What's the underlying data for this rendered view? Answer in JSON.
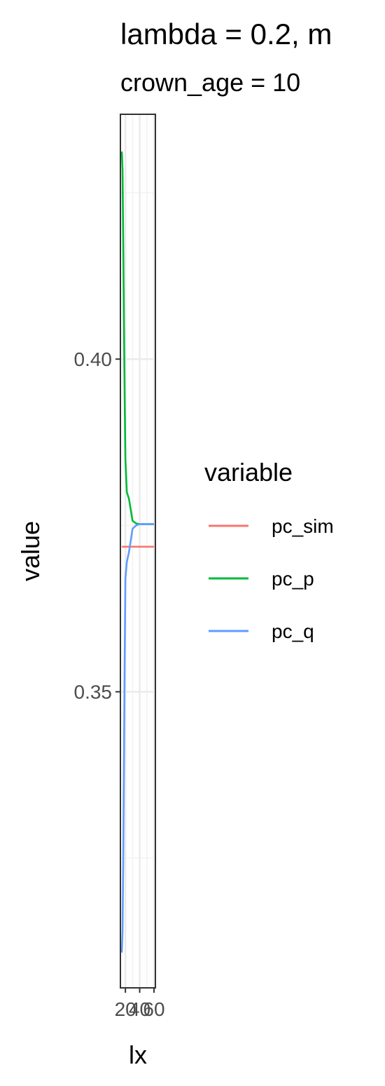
{
  "chart_data": {
    "type": "line",
    "title": "lambda = 0.2, m",
    "subtitle": "crown_age = 10",
    "xlabel": "lx",
    "ylabel": "value",
    "xlim": [
      13,
      62
    ],
    "ylim": [
      0.3055,
      0.4368
    ],
    "x_ticks": [
      20,
      40,
      60
    ],
    "x_tick_labels": [
      "20",
      "40",
      "60"
    ],
    "x_minor_ticks": [
      30,
      50
    ],
    "y_ticks": [
      0.35,
      0.4
    ],
    "y_tick_labels": [
      "0.35",
      "0.40"
    ],
    "y_minor_ticks": [
      0.325,
      0.375,
      0.425
    ],
    "grid": true,
    "legend": {
      "title": "variable",
      "position": "right"
    },
    "series": [
      {
        "name": "pc_sim",
        "color": "#F8766D",
        "x": [
          15,
          20,
          25,
          30,
          35,
          40,
          45,
          50,
          55,
          60
        ],
        "values": [
          0.3718,
          0.3718,
          0.3718,
          0.3718,
          0.3718,
          0.3718,
          0.3718,
          0.3718,
          0.3718,
          0.3718
        ]
      },
      {
        "name": "pc_p",
        "color": "#00BA38",
        "x": [
          15,
          16,
          17,
          18,
          19,
          20,
          22,
          25,
          30,
          35,
          40,
          45,
          50,
          55,
          60
        ],
        "values": [
          0.4312,
          0.4285,
          0.417,
          0.405,
          0.394,
          0.385,
          0.38,
          0.379,
          0.3757,
          0.3753,
          0.3752,
          0.3752,
          0.3752,
          0.3752,
          0.3752
        ]
      },
      {
        "name": "pc_q",
        "color": "#619CFF",
        "x": [
          15,
          16,
          17,
          18,
          19,
          20,
          22,
          25,
          30,
          35,
          40,
          45,
          50,
          55,
          60
        ],
        "values": [
          0.3108,
          0.314,
          0.325,
          0.34,
          0.355,
          0.367,
          0.3695,
          0.371,
          0.3745,
          0.375,
          0.3752,
          0.3752,
          0.3752,
          0.3752,
          0.3752
        ]
      }
    ]
  }
}
